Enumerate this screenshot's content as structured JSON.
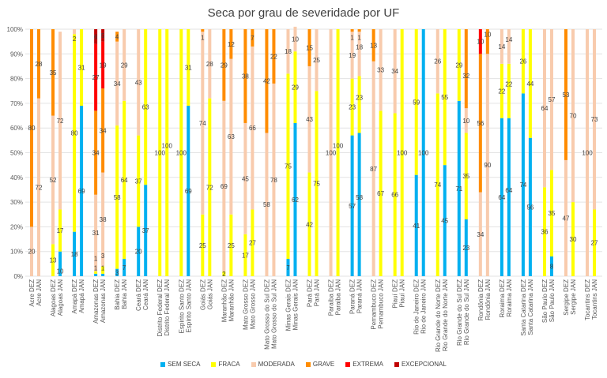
{
  "chart_data": {
    "type": "bar",
    "stacked": "percent",
    "title": "Seca por grau de severidade por UF",
    "ylim": [
      0,
      100
    ],
    "yticks": [
      "0%",
      "10%",
      "20%",
      "30%",
      "40%",
      "50%",
      "60%",
      "70%",
      "80%",
      "90%",
      "100%"
    ],
    "grid": true,
    "legend_position": "bottom",
    "categories": [
      "Acre DEZ",
      "Acre JAN",
      "Alagoas DEZ",
      "Alagoas JAN",
      "Amapá DEZ",
      "Amapá JAN",
      "Amazonas DEZ",
      "Amazonas JAN",
      "Bahia DEZ",
      "Bahia JAN",
      "Ceará DEZ",
      "Ceará JAN",
      "Distrito Federal DEZ",
      "Distrito Federal JAN",
      "Espírito Santo DEZ",
      "Espírito Santo JAN",
      "Goiás DEZ",
      "Goiás JAN",
      "Maranhão DEZ",
      "Maranhão JAN",
      "Mato Grosso DEZ",
      "Mato Grosso JAN",
      "Mato Grosso do Sul DEZ",
      "Mato Grosso do Sul JAN",
      "Minas Gerais DEZ",
      "Minas Gerais JAN",
      "Pará DEZ",
      "Pará JAN",
      "Paraíba DEZ",
      "Paraíba JAN",
      "Paraná DEZ",
      "Paraná JAN",
      "Pernambuco DEZ",
      "Pernambuco JAN",
      "Piauí DEZ",
      "Piauí JAN",
      "Rio de Janeiro DEZ",
      "Rio de Janeiro JAN",
      "Rio Grande do Norte DEZ",
      "Rio Grande do Norte JAN",
      "Rio Grande do Sul DEZ",
      "Rio Grande do Sul JAN",
      "Rondônia DEZ",
      "Rondônia JAN",
      "Roraima DEZ",
      "Roraima JAN",
      "Santa Catarina DEZ",
      "Santa Catarina JAN",
      "São Paulo DEZ",
      "São Paulo JAN",
      "Sergipe DEZ",
      "Sergipe JAN",
      "Tocantins DEZ",
      "Tocantins JAN"
    ],
    "series": [
      {
        "name": "SEM SECA",
        "color": "#00B0F0",
        "values": [
          0,
          0,
          0,
          10,
          18,
          69,
          1,
          1,
          3,
          7,
          20,
          37,
          0,
          0,
          0,
          69,
          0,
          0,
          0,
          0,
          0,
          0,
          0,
          0,
          7,
          62,
          0,
          0,
          0,
          0,
          57,
          58,
          0,
          0,
          0,
          0,
          41,
          100,
          0,
          45,
          71,
          23,
          0,
          0,
          64,
          64,
          74,
          56,
          0,
          8,
          0,
          0,
          0,
          0
        ]
      },
      {
        "name": "FRACA",
        "color": "#FFFF00",
        "values": [
          0,
          0,
          13,
          17,
          80,
          31,
          1,
          3,
          58,
          64,
          37,
          63,
          100,
          100,
          100,
          31,
          25,
          72,
          2,
          25,
          17,
          27,
          0,
          0,
          75,
          29,
          42,
          75,
          0,
          100,
          23,
          23,
          0,
          67,
          66,
          100,
          59,
          0,
          74,
          55,
          29,
          35,
          0,
          0,
          22,
          22,
          26,
          44,
          36,
          35,
          0,
          30,
          0,
          27
        ]
      },
      {
        "name": "MODERADA",
        "color": "#F8CBAD",
        "values": [
          20,
          72,
          52,
          72,
          2,
          0,
          31,
          38,
          34,
          29,
          43,
          0,
          0,
          0,
          0,
          0,
          74,
          28,
          69,
          63,
          45,
          66,
          58,
          78,
          18,
          10,
          43,
          25,
          100,
          0,
          19,
          18,
          87,
          33,
          34,
          0,
          0,
          0,
          26,
          0,
          0,
          10,
          34,
          90,
          14,
          14,
          0,
          0,
          64,
          57,
          47,
          70,
          100,
          73
        ]
      },
      {
        "name": "GRAVE",
        "color": "#FF8C00",
        "values": [
          80,
          28,
          35,
          0,
          0,
          0,
          34,
          34,
          4,
          0,
          0,
          0,
          0,
          0,
          0,
          0,
          1,
          0,
          29,
          12,
          38,
          7,
          42,
          22,
          0,
          0,
          15,
          0,
          0,
          0,
          1,
          1,
          13,
          0,
          0,
          0,
          0,
          0,
          0,
          0,
          0,
          32,
          56,
          10,
          0,
          0,
          0,
          0,
          0,
          0,
          53,
          0,
          0,
          0
        ]
      },
      {
        "name": "EXTREMA",
        "color": "#FF0000",
        "values": [
          0,
          0,
          0,
          0,
          0,
          0,
          27,
          19,
          0,
          0,
          0,
          0,
          0,
          0,
          0,
          0,
          0,
          0,
          0,
          0,
          0,
          0,
          0,
          0,
          0,
          0,
          0,
          0,
          0,
          0,
          0,
          0,
          0,
          0,
          0,
          0,
          0,
          0,
          0,
          0,
          0,
          0,
          10,
          0,
          0,
          0,
          0,
          0,
          0,
          0,
          0,
          0,
          0,
          0
        ]
      },
      {
        "name": "EXCEPCIONAL",
        "color": "#C00000",
        "values": [
          0,
          0,
          0,
          0,
          0,
          0,
          6,
          5,
          0,
          0,
          0,
          0,
          0,
          0,
          0,
          0,
          0,
          0,
          0,
          0,
          0,
          0,
          0,
          0,
          0,
          0,
          0,
          0,
          0,
          0,
          0,
          0,
          0,
          0,
          0,
          0,
          0,
          0,
          0,
          0,
          0,
          0,
          0,
          0,
          0,
          0,
          0,
          0,
          0,
          0,
          0,
          0,
          0,
          0
        ]
      }
    ]
  }
}
